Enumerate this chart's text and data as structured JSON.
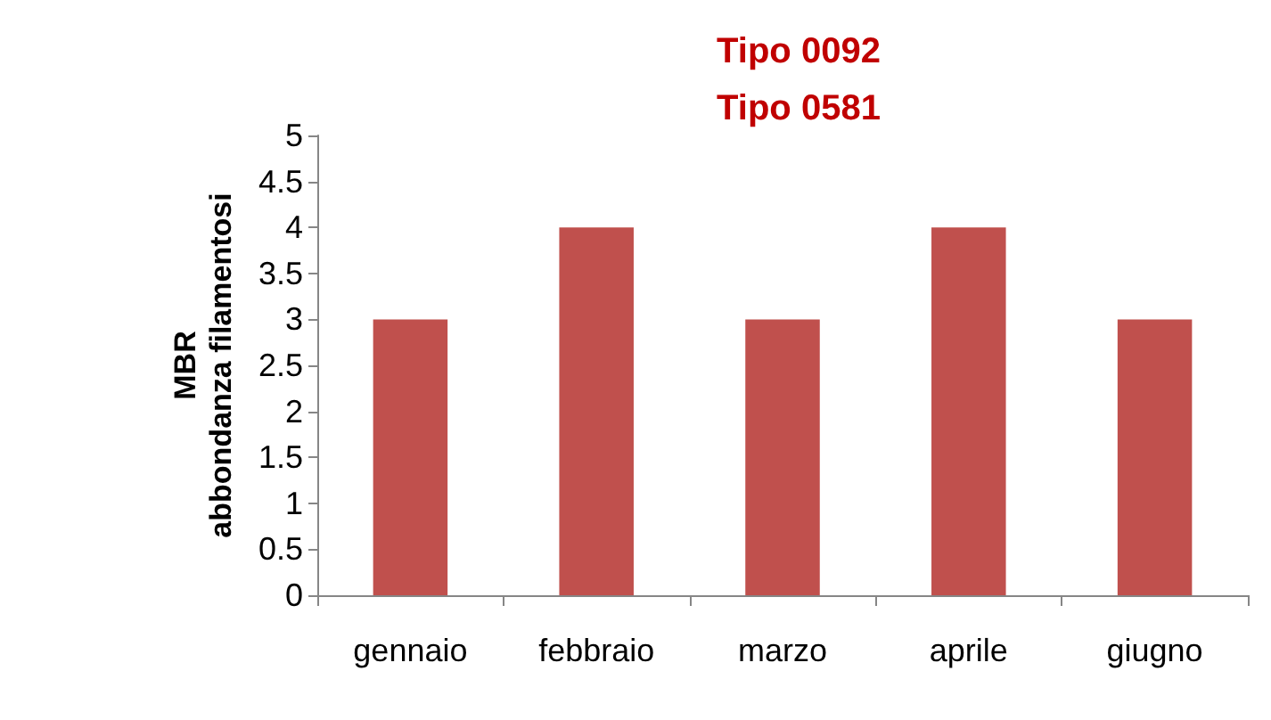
{
  "chart_data": {
    "type": "bar",
    "title": "Tipo 0092\nTipo 0581",
    "ylabel": "MBR\nabbondanza filamentosi",
    "categories": [
      "gennaio",
      "febbraio",
      "marzo",
      "aprile",
      "giugno"
    ],
    "values": [
      3,
      4,
      3,
      4,
      3
    ],
    "color": "#c0504d",
    "ylim": [
      0,
      5
    ],
    "yticks": [
      0,
      0.5,
      1,
      1.5,
      2,
      2.5,
      3,
      3.5,
      4,
      4.5,
      5
    ],
    "grid": false
  }
}
